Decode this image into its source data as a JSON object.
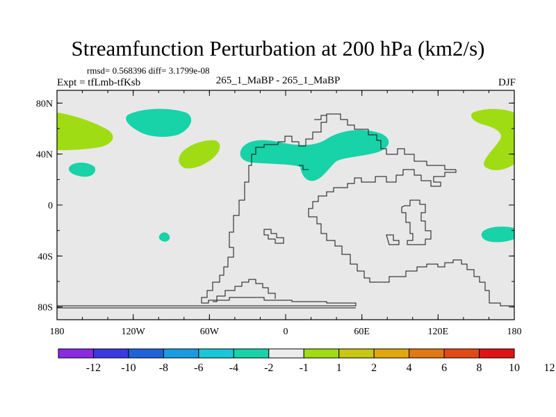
{
  "chart_data": {
    "type": "heatmap",
    "title": "Streamfunction Perturbation at 200 hPa (km2/s)",
    "stats": "rmsd= 0.568396 diff= 3.1799e-08",
    "left_label": "Expt = tfLmb-tfKsb",
    "center_label": "265_1_MaBP - 265_1_MaBP",
    "right_label": "DJF",
    "x_range": [
      -180,
      180
    ],
    "y_range": [
      -90,
      90
    ],
    "x_ticks": [
      {
        "value": -180,
        "label": "180"
      },
      {
        "value": -120,
        "label": "120W"
      },
      {
        "value": -60,
        "label": "60W"
      },
      {
        "value": 0,
        "label": "0"
      },
      {
        "value": 60,
        "label": "60E"
      },
      {
        "value": 120,
        "label": "120E"
      },
      {
        "value": 180,
        "label": "180"
      }
    ],
    "y_ticks": [
      {
        "value": 80,
        "label": "80N"
      },
      {
        "value": 40,
        "label": "40N"
      },
      {
        "value": 0,
        "label": "0"
      },
      {
        "value": -40,
        "label": "40S"
      },
      {
        "value": -80,
        "label": "80S"
      }
    ],
    "colorbar": {
      "colors": [
        "#8a2be2",
        "#3a3ae0",
        "#1e64d8",
        "#1a9be0",
        "#18c8d8",
        "#18d2a8",
        "#ebebeb",
        "#a0dc14",
        "#c8c814",
        "#e0a80c",
        "#e07814",
        "#e04a14",
        "#e01414"
      ],
      "labels": [
        "-12",
        "-10",
        "-8",
        "-6",
        "-4",
        "-2",
        "-1",
        "1",
        "2",
        "4",
        "6",
        "8",
        "10",
        "12"
      ]
    },
    "background_color": "#e8e8e8",
    "anomalies": [
      {
        "range": "-2 to -1",
        "color": "#18d2a8",
        "description": "Northern Pacific high-latitude cell"
      },
      {
        "range": "-2 to -1",
        "color": "#18d2a8",
        "description": "North Pacific small cell"
      },
      {
        "range": "-2 to -1",
        "color": "#18d2a8",
        "description": "Europe–Western Asia band"
      },
      {
        "range": "-2 to -1",
        "color": "#18d2a8",
        "description": "Tropical east Pacific small cell"
      },
      {
        "range": "-2 to -1",
        "color": "#18d2a8",
        "description": "South Pacific east cell"
      },
      {
        "range": "1 to 2",
        "color": "#a0dc14",
        "description": "Western Pacific midlatitude band (wraps dateline)"
      },
      {
        "range": "1 to 2",
        "color": "#a0dc14",
        "description": "North Pacific east cell"
      },
      {
        "range": "1 to 2",
        "color": "#a0dc14",
        "description": "Equatorial east Pacific small cell"
      }
    ]
  }
}
